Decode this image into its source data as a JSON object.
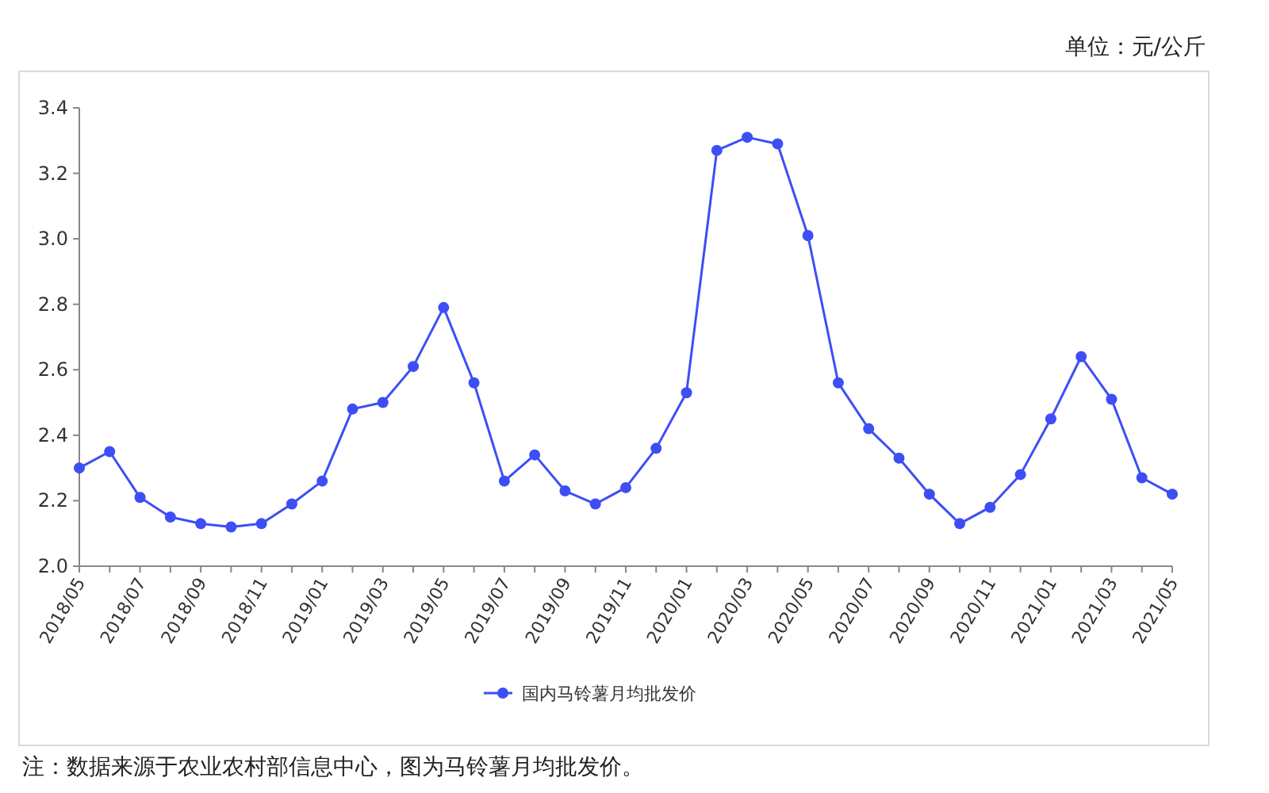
{
  "chart_data": {
    "type": "line",
    "categories": [
      "2018/05",
      null,
      "2018/07",
      null,
      "2018/09",
      null,
      "2018/11",
      null,
      "2019/01",
      null,
      "2019/03",
      null,
      "2019/05",
      null,
      "2019/07",
      null,
      "2019/09",
      null,
      "2019/11",
      null,
      "2020/01",
      null,
      "2020/03",
      null,
      "2020/05",
      null,
      "2020/07",
      null,
      "2020/09",
      null,
      "2020/11",
      null,
      "2021/01",
      null,
      "2021/03",
      null,
      "2021/05"
    ],
    "series": [
      {
        "name": "国内马铃薯月均批发价",
        "color": "#3d4ef5",
        "values": [
          2.3,
          2.35,
          2.21,
          2.15,
          2.13,
          2.12,
          2.13,
          2.19,
          2.26,
          2.48,
          2.5,
          2.61,
          2.79,
          2.56,
          2.26,
          2.34,
          2.23,
          2.19,
          2.24,
          2.36,
          2.53,
          3.27,
          3.31,
          3.29,
          3.01,
          2.56,
          2.42,
          2.33,
          2.22,
          2.13,
          2.18,
          2.28,
          2.45,
          2.64,
          2.51,
          2.27,
          2.22
        ]
      }
    ],
    "ylim": [
      2.0,
      3.4
    ],
    "yticks": [
      {
        "value": 2.0,
        "label": "2.0"
      },
      2.2,
      2.4,
      2.6,
      2.8,
      {
        "value": 3.0,
        "label": "3.0"
      },
      3.2,
      3.4
    ],
    "marker": "circle",
    "line_style": "solid",
    "grid": false,
    "legend": "bottom",
    "annotations": [
      "单位：元/公斤",
      "注：数据来源于农业农村部信息中心，图为马铃薯月均批发价。"
    ]
  }
}
